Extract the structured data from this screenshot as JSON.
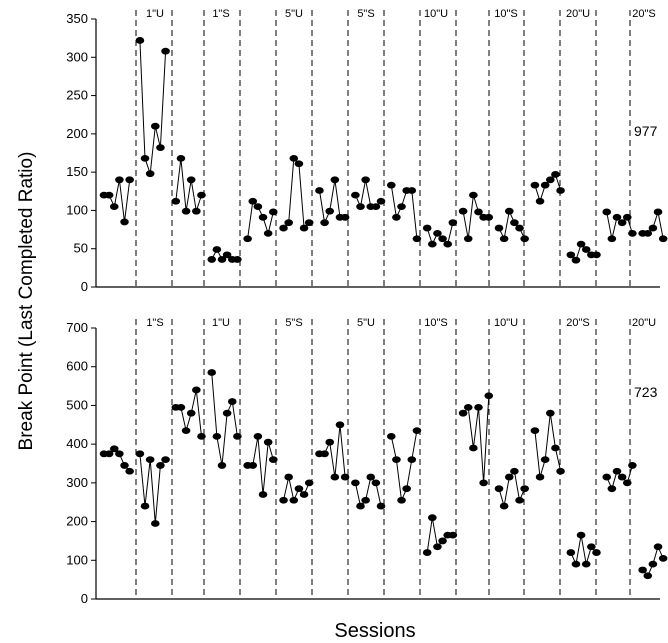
{
  "chart_data": [
    {
      "type": "line",
      "subject": "977",
      "ylim": [
        0,
        350
      ],
      "yticks": [
        0,
        50,
        100,
        150,
        200,
        250,
        300,
        350
      ],
      "conditions": [
        "1\"U",
        "1\"S",
        "5\"U",
        "5\"S",
        "10\"U",
        "10\"S",
        "20\"U",
        "20\"S"
      ],
      "points": [
        {
          "x": 1,
          "y": 120
        },
        {
          "x": 2,
          "y": 120
        },
        {
          "x": 3,
          "y": 105
        },
        {
          "x": 4,
          "y": 140
        },
        {
          "x": 5,
          "y": 85
        },
        {
          "x": 6,
          "y": 140
        },
        {
          "x": 8,
          "y": 322
        },
        {
          "x": 9,
          "y": 168
        },
        {
          "x": 10,
          "y": 148
        },
        {
          "x": 11,
          "y": 210
        },
        {
          "x": 12,
          "y": 182
        },
        {
          "x": 13,
          "y": 308
        },
        {
          "x": 15,
          "y": 112
        },
        {
          "x": 16,
          "y": 168
        },
        {
          "x": 17,
          "y": 99
        },
        {
          "x": 18,
          "y": 140
        },
        {
          "x": 19,
          "y": 99
        },
        {
          "x": 20,
          "y": 120
        },
        {
          "x": 22,
          "y": 36
        },
        {
          "x": 23,
          "y": 49
        },
        {
          "x": 24,
          "y": 36
        },
        {
          "x": 25,
          "y": 42
        },
        {
          "x": 26,
          "y": 36
        },
        {
          "x": 27,
          "y": 36
        },
        {
          "x": 29,
          "y": 63
        },
        {
          "x": 30,
          "y": 112
        },
        {
          "x": 31,
          "y": 105
        },
        {
          "x": 32,
          "y": 91
        },
        {
          "x": 33,
          "y": 70
        },
        {
          "x": 34,
          "y": 98
        },
        {
          "x": 36,
          "y": 77
        },
        {
          "x": 37,
          "y": 84
        },
        {
          "x": 38,
          "y": 168
        },
        {
          "x": 39,
          "y": 161
        },
        {
          "x": 40,
          "y": 77
        },
        {
          "x": 41,
          "y": 84
        },
        {
          "x": 43,
          "y": 126
        },
        {
          "x": 44,
          "y": 84
        },
        {
          "x": 45,
          "y": 99
        },
        {
          "x": 46,
          "y": 140
        },
        {
          "x": 47,
          "y": 91
        },
        {
          "x": 48,
          "y": 91
        },
        {
          "x": 50,
          "y": 120
        },
        {
          "x": 51,
          "y": 105
        },
        {
          "x": 52,
          "y": 140
        },
        {
          "x": 53,
          "y": 105
        },
        {
          "x": 54,
          "y": 105
        },
        {
          "x": 55,
          "y": 112
        },
        {
          "x": 57,
          "y": 133
        },
        {
          "x": 58,
          "y": 91
        },
        {
          "x": 59,
          "y": 105
        },
        {
          "x": 60,
          "y": 126
        },
        {
          "x": 61,
          "y": 126
        },
        {
          "x": 62,
          "y": 63
        },
        {
          "x": 64,
          "y": 77
        },
        {
          "x": 65,
          "y": 56
        },
        {
          "x": 66,
          "y": 70
        },
        {
          "x": 67,
          "y": 63
        },
        {
          "x": 68,
          "y": 56
        },
        {
          "x": 69,
          "y": 84
        },
        {
          "x": 71,
          "y": 99
        },
        {
          "x": 72,
          "y": 63
        },
        {
          "x": 73,
          "y": 120
        },
        {
          "x": 74,
          "y": 98
        },
        {
          "x": 75,
          "y": 91
        },
        {
          "x": 76,
          "y": 91
        },
        {
          "x": 78,
          "y": 77
        },
        {
          "x": 79,
          "y": 63
        },
        {
          "x": 80,
          "y": 99
        },
        {
          "x": 81,
          "y": 84
        },
        {
          "x": 82,
          "y": 77
        },
        {
          "x": 83,
          "y": 63
        },
        {
          "x": 85,
          "y": 133
        },
        {
          "x": 86,
          "y": 112
        },
        {
          "x": 87,
          "y": 133
        },
        {
          "x": 88,
          "y": 140
        },
        {
          "x": 89,
          "y": 147
        },
        {
          "x": 90,
          "y": 126
        },
        {
          "x": 92,
          "y": 42
        },
        {
          "x": 93,
          "y": 35
        },
        {
          "x": 94,
          "y": 56
        },
        {
          "x": 95,
          "y": 49
        },
        {
          "x": 96,
          "y": 42
        },
        {
          "x": 97,
          "y": 42
        },
        {
          "x": 99,
          "y": 98
        },
        {
          "x": 100,
          "y": 63
        },
        {
          "x": 101,
          "y": 91
        },
        {
          "x": 102,
          "y": 84
        },
        {
          "x": 103,
          "y": 91
        },
        {
          "x": 104,
          "y": 70
        },
        {
          "x": 106,
          "y": 70
        },
        {
          "x": 107,
          "y": 70
        },
        {
          "x": 108,
          "y": 77
        },
        {
          "x": 109,
          "y": 98
        },
        {
          "x": 110,
          "y": 63
        }
      ]
    },
    {
      "type": "line",
      "subject": "723",
      "ylim": [
        0,
        700
      ],
      "yticks": [
        0,
        100,
        200,
        300,
        400,
        500,
        600,
        700
      ],
      "conditions": [
        "1\"S",
        "1\"U",
        "5\"S",
        "5\"U",
        "10\"S",
        "10\"U",
        "20\"S",
        "20\"U"
      ],
      "points": [
        {
          "x": 1,
          "y": 375
        },
        {
          "x": 2,
          "y": 375
        },
        {
          "x": 3,
          "y": 388
        },
        {
          "x": 4,
          "y": 375
        },
        {
          "x": 5,
          "y": 345
        },
        {
          "x": 6,
          "y": 330
        },
        {
          "x": 8,
          "y": 375
        },
        {
          "x": 9,
          "y": 240
        },
        {
          "x": 10,
          "y": 360
        },
        {
          "x": 11,
          "y": 195
        },
        {
          "x": 12,
          "y": 345
        },
        {
          "x": 13,
          "y": 360
        },
        {
          "x": 15,
          "y": 495
        },
        {
          "x": 16,
          "y": 495
        },
        {
          "x": 17,
          "y": 435
        },
        {
          "x": 18,
          "y": 480
        },
        {
          "x": 19,
          "y": 540
        },
        {
          "x": 20,
          "y": 420
        },
        {
          "x": 22,
          "y": 585
        },
        {
          "x": 23,
          "y": 420
        },
        {
          "x": 24,
          "y": 345
        },
        {
          "x": 25,
          "y": 480
        },
        {
          "x": 26,
          "y": 510
        },
        {
          "x": 27,
          "y": 420
        },
        {
          "x": 29,
          "y": 345
        },
        {
          "x": 30,
          "y": 345
        },
        {
          "x": 31,
          "y": 420
        },
        {
          "x": 32,
          "y": 270
        },
        {
          "x": 33,
          "y": 405
        },
        {
          "x": 34,
          "y": 360
        },
        {
          "x": 36,
          "y": 255
        },
        {
          "x": 37,
          "y": 315
        },
        {
          "x": 38,
          "y": 255
        },
        {
          "x": 39,
          "y": 285
        },
        {
          "x": 40,
          "y": 270
        },
        {
          "x": 41,
          "y": 300
        },
        {
          "x": 43,
          "y": 375
        },
        {
          "x": 44,
          "y": 375
        },
        {
          "x": 45,
          "y": 405
        },
        {
          "x": 46,
          "y": 315
        },
        {
          "x": 47,
          "y": 450
        },
        {
          "x": 48,
          "y": 315
        },
        {
          "x": 50,
          "y": 300
        },
        {
          "x": 51,
          "y": 240
        },
        {
          "x": 52,
          "y": 255
        },
        {
          "x": 53,
          "y": 315
        },
        {
          "x": 54,
          "y": 300
        },
        {
          "x": 55,
          "y": 240
        },
        {
          "x": 57,
          "y": 420
        },
        {
          "x": 58,
          "y": 360
        },
        {
          "x": 59,
          "y": 255
        },
        {
          "x": 60,
          "y": 285
        },
        {
          "x": 61,
          "y": 360
        },
        {
          "x": 62,
          "y": 435
        },
        {
          "x": 64,
          "y": 120
        },
        {
          "x": 65,
          "y": 210
        },
        {
          "x": 66,
          "y": 135
        },
        {
          "x": 67,
          "y": 150
        },
        {
          "x": 68,
          "y": 165
        },
        {
          "x": 69,
          "y": 165
        },
        {
          "x": 71,
          "y": 480
        },
        {
          "x": 72,
          "y": 495
        },
        {
          "x": 73,
          "y": 390
        },
        {
          "x": 74,
          "y": 495
        },
        {
          "x": 75,
          "y": 300
        },
        {
          "x": 76,
          "y": 525
        },
        {
          "x": 78,
          "y": 285
        },
        {
          "x": 79,
          "y": 240
        },
        {
          "x": 80,
          "y": 315
        },
        {
          "x": 81,
          "y": 330
        },
        {
          "x": 82,
          "y": 255
        },
        {
          "x": 83,
          "y": 285
        },
        {
          "x": 85,
          "y": 435
        },
        {
          "x": 86,
          "y": 315
        },
        {
          "x": 87,
          "y": 360
        },
        {
          "x": 88,
          "y": 480
        },
        {
          "x": 89,
          "y": 390
        },
        {
          "x": 90,
          "y": 330
        },
        {
          "x": 92,
          "y": 120
        },
        {
          "x": 93,
          "y": 90
        },
        {
          "x": 94,
          "y": 165
        },
        {
          "x": 95,
          "y": 90
        },
        {
          "x": 96,
          "y": 135
        },
        {
          "x": 97,
          "y": 120
        },
        {
          "x": 99,
          "y": 315
        },
        {
          "x": 100,
          "y": 285
        },
        {
          "x": 101,
          "y": 330
        },
        {
          "x": 102,
          "y": 315
        },
        {
          "x": 103,
          "y": 300
        },
        {
          "x": 104,
          "y": 345
        },
        {
          "x": 106,
          "y": 75
        },
        {
          "x": 107,
          "y": 60
        },
        {
          "x": 108,
          "y": 90
        },
        {
          "x": 109,
          "y": 135
        },
        {
          "x": 110,
          "y": 105
        }
      ]
    }
  ],
  "ylabel": "Break Point (Last Completed Ratio)",
  "xlabel": "Sessions"
}
